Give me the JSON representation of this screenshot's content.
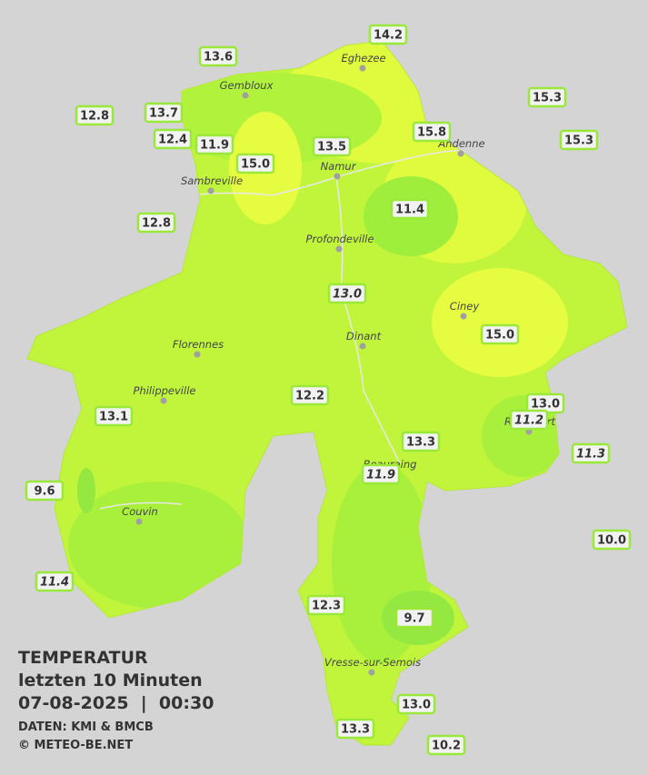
{
  "header": {
    "title": "TEMPERATUR",
    "period": "letzten 10 Minuten",
    "datetime": "07-08-2025  |  00:30",
    "source": "DATEN: KMI & BMCB",
    "copyright": "© METEO-BE.NET"
  },
  "cities": [
    "Eghezee",
    "Gembloux",
    "Andenne",
    "Namur",
    "Sambreville",
    "Profondeville",
    "Ciney",
    "Dinant",
    "Florennes",
    "Philippeville",
    "Couvin",
    "Vresse-sur-Semois",
    "Rochefort",
    "Beauraing"
  ],
  "readings": [
    "13.6",
    "14.2",
    "12.8",
    "13.7",
    "12.4",
    "11.9",
    "15.0",
    "13.5",
    "15.8",
    "15.3",
    "15.3",
    "11.4",
    "12.8",
    "13.0",
    "15.0",
    "12.2",
    "13.1",
    "13.0",
    "11.2",
    "13.3",
    "11.3",
    "11.9",
    "9.6",
    "10.0",
    "11.4",
    "12.3",
    "9.7",
    "13.0",
    "13.3",
    "10.2"
  ]
}
